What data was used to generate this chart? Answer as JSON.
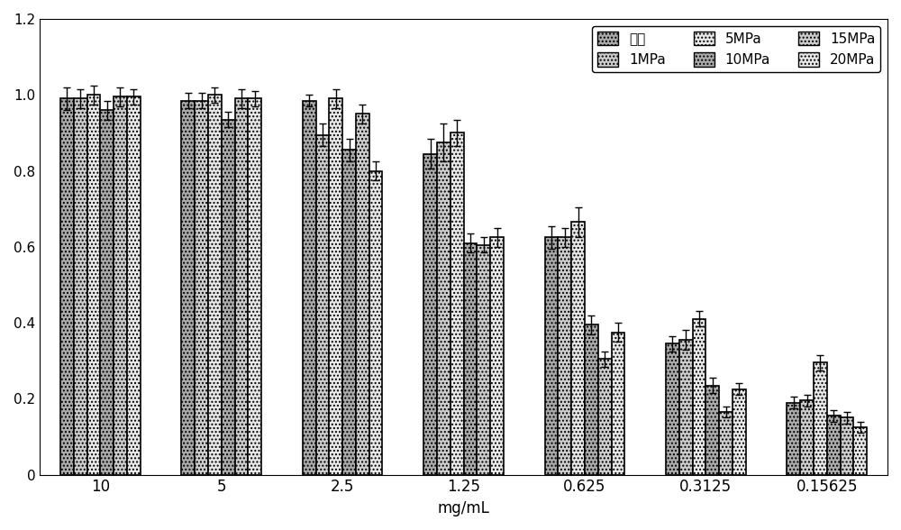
{
  "categories": [
    "10",
    "5",
    "2.5",
    "1.25",
    "0.625",
    "0.3125",
    "0.15625"
  ],
  "series_labels": [
    "传统",
    "1MPa",
    "5MPa",
    "10MPa",
    "15MPa",
    "20MPa"
  ],
  "values": {
    "传统": [
      0.99,
      0.985,
      0.985,
      0.845,
      0.625,
      0.345,
      0.19
    ],
    "1MPa": [
      0.99,
      0.985,
      0.895,
      0.875,
      0.625,
      0.355,
      0.195
    ],
    "5MPa": [
      1.0,
      1.0,
      0.99,
      0.9,
      0.665,
      0.41,
      0.295
    ],
    "10MPa": [
      0.96,
      0.935,
      0.855,
      0.61,
      0.395,
      0.235,
      0.155
    ],
    "15MPa": [
      0.995,
      0.99,
      0.95,
      0.605,
      0.305,
      0.165,
      0.15
    ],
    "20MPa": [
      0.995,
      0.99,
      0.8,
      0.625,
      0.375,
      0.225,
      0.125
    ]
  },
  "errors": {
    "传统": [
      0.03,
      0.02,
      0.015,
      0.04,
      0.03,
      0.02,
      0.015
    ],
    "1MPa": [
      0.025,
      0.02,
      0.03,
      0.05,
      0.025,
      0.025,
      0.015
    ],
    "5MPa": [
      0.025,
      0.02,
      0.025,
      0.035,
      0.04,
      0.02,
      0.02
    ],
    "10MPa": [
      0.025,
      0.02,
      0.03,
      0.025,
      0.025,
      0.02,
      0.015
    ],
    "15MPa": [
      0.025,
      0.025,
      0.025,
      0.02,
      0.02,
      0.015,
      0.015
    ],
    "20MPa": [
      0.02,
      0.02,
      0.025,
      0.025,
      0.025,
      0.015,
      0.015
    ]
  },
  "colors": {
    "传统": "#aaaaaa",
    "1MPa": "#cccccc",
    "5MPa": "#e8e8e8",
    "10MPa": "#aaaaaa",
    "15MPa": "#cccccc",
    "20MPa": "#e8e8e8"
  },
  "hatches": {
    "传统": "....",
    "1MPa": "....",
    "5MPa": "....",
    "10MPa": "....",
    "15MPa": "....",
    "20MPa": "...."
  },
  "xlabel": "mg/mL",
  "ylim": [
    0,
    1.2
  ],
  "yticks": [
    0,
    0.2,
    0.4,
    0.6,
    0.8,
    1.0,
    1.2
  ],
  "legend_ncol": 3,
  "bar_width": 0.11,
  "figsize": [
    10.0,
    5.88
  ],
  "dpi": 100
}
